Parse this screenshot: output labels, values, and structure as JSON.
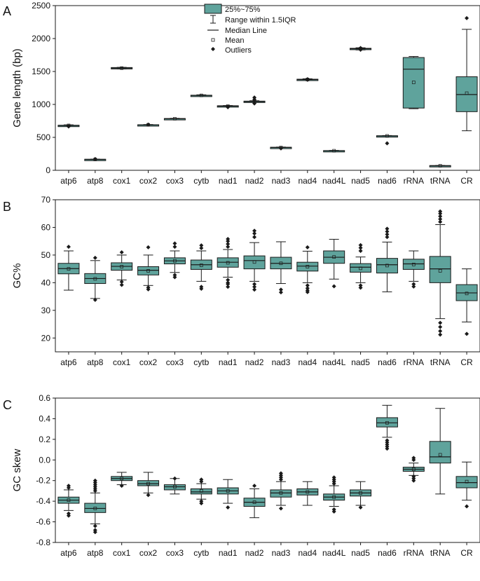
{
  "colors": {
    "box_fill": "#5fa39c",
    "stroke": "#1a1a1a",
    "background": "#ffffff"
  },
  "legend": {
    "box": "25%~75%",
    "range": "Range within 1.5IQR",
    "median": "Median Line",
    "mean": "Mean",
    "outliers": "Outliers"
  },
  "chart_data": [
    {
      "type": "boxplot",
      "panel_label": "A",
      "ylabel": "Gene length (bp)",
      "ylim": [
        0,
        2500
      ],
      "yticks": [
        0,
        500,
        1000,
        1500,
        2000,
        2500
      ],
      "categories": [
        "atp6",
        "atp8",
        "cox1",
        "cox2",
        "cox3",
        "cytb",
        "nad1",
        "nad2",
        "nad3",
        "nad4",
        "nad4L",
        "nad5",
        "nad6",
        "rRNA",
        "tRNA",
        "CR"
      ],
      "boxes": [
        {
          "q1": 678,
          "q3": 684,
          "median": 681,
          "mean": 681,
          "whisker_low": 675,
          "whisker_high": 690,
          "outliers": [
            665,
            670
          ]
        },
        {
          "q1": 162,
          "q3": 168,
          "median": 165,
          "mean": 165,
          "whisker_low": 160,
          "whisker_high": 170,
          "outliers": [
            172
          ]
        },
        {
          "q1": 1542,
          "q3": 1560,
          "median": 1551,
          "mean": 1551,
          "whisker_low": 1539,
          "whisker_high": 1563,
          "outliers": []
        },
        {
          "q1": 686,
          "q3": 692,
          "median": 690,
          "mean": 690,
          "whisker_low": 684,
          "whisker_high": 695,
          "outliers": [
            694
          ]
        },
        {
          "q1": 780,
          "q3": 786,
          "median": 783,
          "mean": 783,
          "whisker_low": 777,
          "whisker_high": 789,
          "outliers": []
        },
        {
          "q1": 1134,
          "q3": 1140,
          "median": 1137,
          "mean": 1137,
          "whisker_low": 1128,
          "whisker_high": 1146,
          "outliers": []
        },
        {
          "q1": 971,
          "q3": 980,
          "median": 975,
          "mean": 975,
          "whisker_low": 965,
          "whisker_high": 983,
          "outliers": [
            957,
            962
          ]
        },
        {
          "q1": 1040,
          "q3": 1050,
          "median": 1044,
          "mean": 1044,
          "whisker_low": 1032,
          "whisker_high": 1056,
          "outliers": [
            1015,
            1075,
            1105
          ]
        },
        {
          "q1": 344,
          "q3": 350,
          "median": 347,
          "mean": 347,
          "whisker_low": 340,
          "whisker_high": 353,
          "outliers": [
            333
          ]
        },
        {
          "q1": 1374,
          "q3": 1383,
          "median": 1378,
          "mean": 1378,
          "whisker_low": 1368,
          "whisker_high": 1389,
          "outliers": [
            1374,
            1383
          ]
        },
        {
          "q1": 294,
          "q3": 300,
          "median": 297,
          "mean": 297,
          "whisker_low": 291,
          "whisker_high": 303,
          "outliers": []
        },
        {
          "q1": 1836,
          "q3": 1852,
          "median": 1845,
          "mean": 1845,
          "whisker_low": 1827,
          "whisker_high": 1860,
          "outliers": [
            1830,
            1856
          ]
        },
        {
          "q1": 519,
          "q3": 525,
          "median": 522,
          "mean": 522,
          "whisker_low": 516,
          "whisker_high": 528,
          "outliers": [
            410
          ]
        },
        {
          "q1": 945,
          "q3": 1712,
          "median": 1535,
          "mean": 1335,
          "whisker_low": 935,
          "whisker_high": 1728,
          "outliers": []
        },
        {
          "q1": 66,
          "q3": 72,
          "median": 69,
          "mean": 69,
          "whisker_low": 62,
          "whisker_high": 74,
          "outliers": []
        },
        {
          "q1": 890,
          "q3": 1420,
          "median": 1150,
          "mean": 1170,
          "whisker_low": 600,
          "whisker_high": 2140,
          "outliers": [
            2310
          ]
        }
      ]
    },
    {
      "type": "boxplot",
      "panel_label": "B",
      "ylabel": "GC%",
      "ylim": [
        15,
        70
      ],
      "yticks": [
        20,
        30,
        40,
        50,
        60,
        70
      ],
      "categories": [
        "atp6",
        "atp8",
        "cox1",
        "cox2",
        "cox3",
        "cytb",
        "nad1",
        "nad2",
        "nad3",
        "nad4",
        "nad4L",
        "nad5",
        "nad6",
        "rRNA",
        "tRNA",
        "CR"
      ],
      "boxes": [
        {
          "q1": 43.2,
          "q3": 47.0,
          "median": 45.1,
          "mean": 45.0,
          "whisker_low": 37.3,
          "whisker_high": 51.5,
          "outliers": [
            53.0
          ]
        },
        {
          "q1": 39.7,
          "q3": 43.3,
          "median": 41.5,
          "mean": 41.4,
          "whisker_low": 34.3,
          "whisker_high": 48.0,
          "outliers": [
            49.0,
            33.8
          ]
        },
        {
          "q1": 44.5,
          "q3": 47.2,
          "median": 45.9,
          "mean": 45.8,
          "whisker_low": 41.0,
          "whisker_high": 50.0,
          "outliers": [
            51.0,
            40.3,
            39.2
          ]
        },
        {
          "q1": 42.8,
          "q3": 45.8,
          "median": 44.5,
          "mean": 44.3,
          "whisker_low": 39.0,
          "whisker_high": 50.0,
          "outliers": [
            52.8,
            38.3,
            37.6
          ]
        },
        {
          "q1": 46.8,
          "q3": 49.0,
          "median": 47.9,
          "mean": 47.9,
          "whisker_low": 43.7,
          "whisker_high": 51.5,
          "outliers": [
            53.0,
            54.2,
            42.8,
            42.0
          ]
        },
        {
          "q1": 44.8,
          "q3": 48.2,
          "median": 46.5,
          "mean": 46.3,
          "whisker_low": 40.5,
          "whisker_high": 51.5,
          "outliers": [
            52.5,
            53.5,
            38.5,
            37.8
          ]
        },
        {
          "q1": 45.6,
          "q3": 49.0,
          "median": 47.4,
          "mean": 47.2,
          "whisker_low": 42.0,
          "whisker_high": 52.0,
          "outliers": [
            53.0,
            54.0,
            55.0,
            55.8,
            41.0,
            40.0,
            39.5,
            38.5
          ]
        },
        {
          "q1": 45.0,
          "q3": 49.7,
          "median": 48.0,
          "mean": 47.5,
          "whisker_low": 40.5,
          "whisker_high": 54.5,
          "outliers": [
            56.5,
            57.8,
            58.8,
            39.5,
            38.5,
            37.5
          ]
        },
        {
          "q1": 45.0,
          "q3": 49.2,
          "median": 47.0,
          "mean": 47.0,
          "whisker_low": 39.7,
          "whisker_high": 54.8,
          "outliers": [
            37.5,
            36.5
          ]
        },
        {
          "q1": 44.2,
          "q3": 47.4,
          "median": 46.0,
          "mean": 45.8,
          "whisker_low": 40.0,
          "whisker_high": 51.4,
          "outliers": [
            52.8,
            39.0,
            38.0,
            37.2,
            36.6
          ]
        },
        {
          "q1": 47.0,
          "q3": 51.5,
          "median": 49.2,
          "mean": 49.3,
          "whisker_low": 41.3,
          "whisker_high": 55.7,
          "outliers": [
            38.7
          ]
        },
        {
          "q1": 43.8,
          "q3": 46.9,
          "median": 45.6,
          "mean": 45.2,
          "whisker_low": 40.0,
          "whisker_high": 49.3,
          "outliers": [
            51.5,
            52.6,
            53.6,
            39.0,
            38.2
          ]
        },
        {
          "q1": 43.5,
          "q3": 48.8,
          "median": 46.5,
          "mean": 46.2,
          "whisker_low": 36.7,
          "whisker_high": 54.7,
          "outliers": [
            56.5,
            57.5,
            58.5,
            59.5
          ]
        },
        {
          "q1": 44.8,
          "q3": 48.5,
          "median": 46.8,
          "mean": 46.6,
          "whisker_low": 40.5,
          "whisker_high": 51.5,
          "outliers": [
            39.5,
            38.6
          ]
        },
        {
          "q1": 40.0,
          "q3": 49.5,
          "median": 45.0,
          "mean": 44.3,
          "whisker_low": 27.0,
          "whisker_high": 61.0,
          "outliers": [
            62.0,
            63.0,
            64.0,
            65.0,
            65.8,
            25.5,
            24.0,
            22.5,
            21.2
          ]
        },
        {
          "q1": 33.5,
          "q3": 39.3,
          "median": 36.3,
          "mean": 36.1,
          "whisker_low": 25.8,
          "whisker_high": 45.0,
          "outliers": [
            21.5
          ]
        }
      ]
    },
    {
      "type": "boxplot",
      "panel_label": "C",
      "ylabel": "GC skew",
      "ylim": [
        -0.8,
        0.6
      ],
      "yticks": [
        "-0.8",
        "-0.6",
        "-0.4",
        "-0.2",
        "0.0",
        "0.2",
        "0.4",
        "0.6"
      ],
      "categories": [
        "atp6",
        "atp8",
        "cox1",
        "cox2",
        "cox3",
        "cytb",
        "nad1",
        "nad2",
        "nad3",
        "nad4",
        "nad4L",
        "nad5",
        "nad6",
        "rRNA",
        "tRNA",
        "CR"
      ],
      "boxes": [
        {
          "q1": -0.42,
          "q3": -0.36,
          "median": -0.39,
          "mean": -0.39,
          "whisker_low": -0.49,
          "whisker_high": -0.29,
          "outliers": [
            -0.25,
            -0.27,
            -0.52,
            -0.54
          ]
        },
        {
          "q1": -0.51,
          "q3": -0.42,
          "median": -0.47,
          "mean": -0.47,
          "whisker_low": -0.62,
          "whisker_high": -0.32,
          "outliers": [
            -0.2,
            -0.22,
            -0.24,
            -0.26,
            -0.28,
            -0.3,
            -0.64,
            -0.68,
            -0.7
          ]
        },
        {
          "q1": -0.2,
          "q3": -0.16,
          "median": -0.18,
          "mean": -0.18,
          "whisker_low": -0.24,
          "whisker_high": -0.12,
          "outliers": [
            -0.25
          ]
        },
        {
          "q1": -0.25,
          "q3": -0.2,
          "median": -0.23,
          "mean": -0.23,
          "whisker_low": -0.32,
          "whisker_high": -0.12,
          "outliers": [
            -0.34
          ]
        },
        {
          "q1": -0.29,
          "q3": -0.24,
          "median": -0.26,
          "mean": -0.26,
          "whisker_low": -0.33,
          "whisker_high": -0.18,
          "outliers": [
            -0.18
          ]
        },
        {
          "q1": -0.33,
          "q3": -0.28,
          "median": -0.31,
          "mean": -0.3,
          "whisker_low": -0.38,
          "whisker_high": -0.23,
          "outliers": [
            -0.19,
            -0.21,
            -0.4,
            -0.42
          ]
        },
        {
          "q1": -0.33,
          "q3": -0.27,
          "median": -0.3,
          "mean": -0.3,
          "whisker_low": -0.42,
          "whisker_high": -0.19,
          "outliers": [
            -0.46
          ]
        },
        {
          "q1": -0.45,
          "q3": -0.37,
          "median": -0.41,
          "mean": -0.41,
          "whisker_low": -0.56,
          "whisker_high": -0.28,
          "outliers": [
            -0.25
          ]
        },
        {
          "q1": -0.36,
          "q3": -0.29,
          "median": -0.32,
          "mean": -0.32,
          "whisker_low": -0.44,
          "whisker_high": -0.21,
          "outliers": [
            -0.13,
            -0.15,
            -0.17,
            -0.19,
            -0.47
          ]
        },
        {
          "q1": -0.34,
          "q3": -0.28,
          "median": -0.31,
          "mean": -0.31,
          "whisker_low": -0.44,
          "whisker_high": -0.21,
          "outliers": []
        },
        {
          "q1": -0.39,
          "q3": -0.33,
          "median": -0.36,
          "mean": -0.36,
          "whisker_low": -0.45,
          "whisker_high": -0.25,
          "outliers": [
            -0.17,
            -0.19,
            -0.21,
            -0.23,
            -0.48,
            -0.5
          ]
        },
        {
          "q1": -0.35,
          "q3": -0.29,
          "median": -0.32,
          "mean": -0.32,
          "whisker_low": -0.44,
          "whisker_high": -0.21,
          "outliers": [
            -0.46
          ]
        },
        {
          "q1": 0.32,
          "q3": 0.41,
          "median": 0.36,
          "mean": 0.36,
          "whisker_low": 0.22,
          "whisker_high": 0.53,
          "outliers": [
            0.11,
            0.13,
            0.15,
            0.17,
            0.19
          ]
        },
        {
          "q1": -0.11,
          "q3": -0.07,
          "median": -0.09,
          "mean": -0.09,
          "whisker_low": -0.15,
          "whisker_high": -0.03,
          "outliers": [
            0.0,
            0.02,
            -0.16,
            -0.18,
            -0.2
          ]
        },
        {
          "q1": -0.03,
          "q3": 0.18,
          "median": 0.03,
          "mean": 0.05,
          "whisker_low": -0.33,
          "whisker_high": 0.5,
          "outliers": []
        },
        {
          "q1": -0.27,
          "q3": -0.16,
          "median": -0.22,
          "mean": -0.21,
          "whisker_low": -0.39,
          "whisker_high": -0.02,
          "outliers": [
            -0.45
          ]
        }
      ]
    }
  ]
}
